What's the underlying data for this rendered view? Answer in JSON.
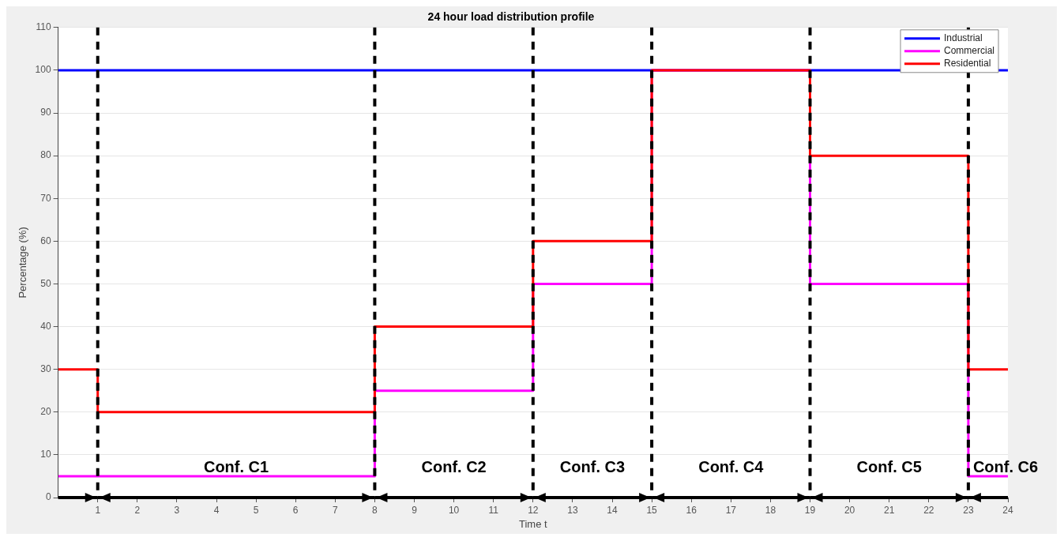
{
  "chart_data": {
    "type": "step",
    "title": "24 hour load distribution profile",
    "xlabel": "Time t",
    "ylabel": "Percentage (%)",
    "x": [
      0,
      1,
      8,
      12,
      15,
      19,
      23,
      24
    ],
    "series": [
      {
        "name": "Industrial",
        "color": "#0000ff",
        "x": [
          0,
          24
        ],
        "values": [
          100,
          100
        ]
      },
      {
        "name": "Commercial",
        "color": "#ff00ff",
        "values": [
          5,
          5,
          25,
          50,
          100,
          50,
          5,
          5
        ]
      },
      {
        "name": "Residential",
        "color": "#ff0000",
        "values": [
          30,
          20,
          40,
          60,
          100,
          80,
          30,
          30
        ]
      }
    ],
    "xlim": [
      0,
      24
    ],
    "xticks": [
      1,
      2,
      3,
      4,
      5,
      6,
      7,
      8,
      9,
      10,
      11,
      12,
      13,
      14,
      15,
      16,
      17,
      18,
      19,
      20,
      21,
      22,
      23,
      24
    ],
    "ylim": [
      0,
      110
    ],
    "yticks": [
      0,
      10,
      20,
      30,
      40,
      50,
      60,
      70,
      80,
      90,
      100,
      110
    ],
    "grid": "y",
    "legend": "top right",
    "marker": "none",
    "line_style": "solid",
    "ref_lines": [
      {
        "axis": "x",
        "value": 1,
        "color": "#000000",
        "line_style": "dashed"
      },
      {
        "axis": "x",
        "value": 8,
        "color": "#000000",
        "line_style": "dashed"
      },
      {
        "axis": "x",
        "value": 12,
        "color": "#000000",
        "line_style": "dashed"
      },
      {
        "axis": "x",
        "value": 15,
        "color": "#000000",
        "line_style": "dashed"
      },
      {
        "axis": "x",
        "value": 19,
        "color": "#000000",
        "line_style": "dashed"
      },
      {
        "axis": "x",
        "value": 23,
        "color": "#000000",
        "line_style": "dashed"
      }
    ],
    "annotations": [
      "Conf. C1",
      "Conf. C2",
      "Conf. C3",
      "Conf. C4",
      "Conf. C5",
      "Conf. C6"
    ]
  }
}
